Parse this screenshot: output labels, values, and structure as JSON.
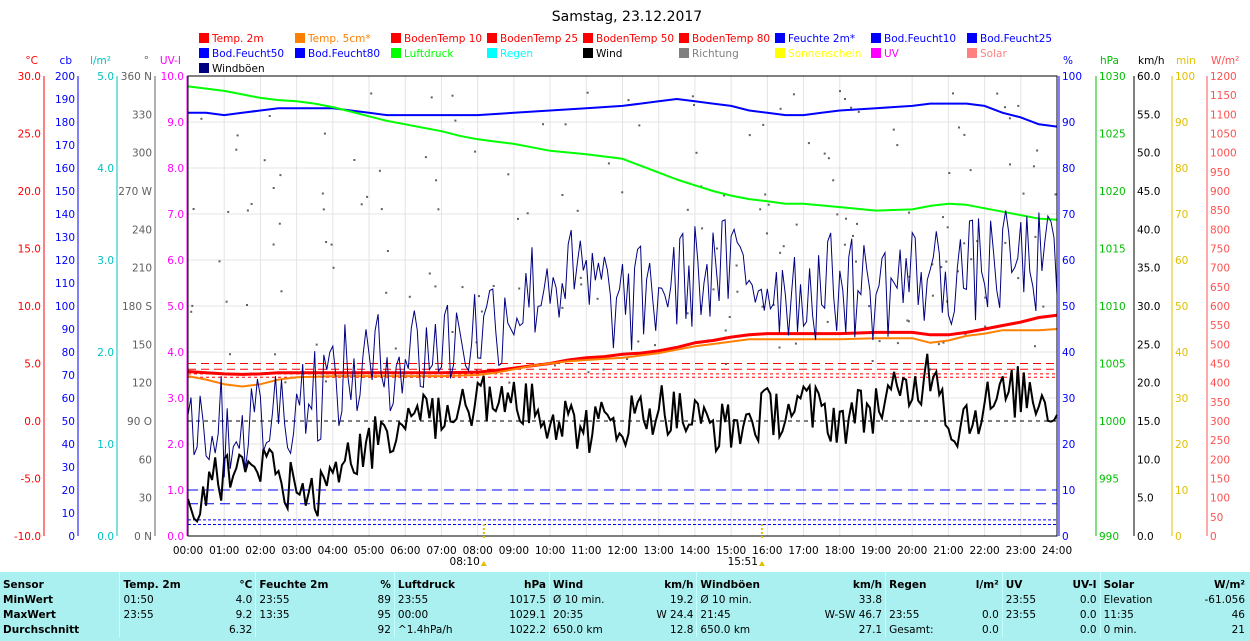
{
  "title": "Samstag, 23.12.2017",
  "legend": [
    {
      "label": "Temp. 2m",
      "color": "#ff0000"
    },
    {
      "label": "Temp. 5cm*",
      "color": "#ff8000"
    },
    {
      "label": "BodenTemp 10",
      "color": "#ff0000"
    },
    {
      "label": "BodenTemp 25",
      "color": "#ff0000"
    },
    {
      "label": "BodenTemp 50",
      "color": "#ff0000"
    },
    {
      "label": "BodenTemp 80",
      "color": "#ff0000"
    },
    {
      "label": "Feuchte 2m*",
      "color": "#0000ff"
    },
    {
      "label": "Bod.Feucht10",
      "color": "#0000ff"
    },
    {
      "label": "Bod.Feucht25",
      "color": "#0000ff"
    },
    {
      "label": "Bod.Feucht50",
      "color": "#0000ff"
    },
    {
      "label": "Bod.Feucht80",
      "color": "#0000ff"
    },
    {
      "label": "Luftdruck",
      "color": "#00ff00"
    },
    {
      "label": "Regen",
      "color": "#00ffff"
    },
    {
      "label": "Wind",
      "color": "#000000"
    },
    {
      "label": "Richtung",
      "color": "#808080"
    },
    {
      "label": "Sonnenschein",
      "color": "#ffff00"
    },
    {
      "label": "UV",
      "color": "#ff00ff"
    },
    {
      "label": "Solar",
      "color": "#ff8080"
    },
    {
      "label": "Windböen",
      "color": "#000080"
    }
  ],
  "chart_data": {
    "type": "line",
    "title": "Samstag, 23.12.2017",
    "x_ticks": [
      "00:00",
      "01:00",
      "02:00",
      "03:00",
      "04:00",
      "05:00",
      "06:00",
      "07:00",
      "08:00",
      "09:00",
      "10:00",
      "11:00",
      "12:00",
      "13:00",
      "14:00",
      "15:00",
      "16:00",
      "17:00",
      "18:00",
      "19:00",
      "20:00",
      "21:00",
      "22:00",
      "23:00",
      "24:00"
    ],
    "markers": [
      {
        "label": "08:10",
        "hour": 8.17
      },
      {
        "label": "15:51",
        "hour": 15.85
      }
    ],
    "axes": [
      {
        "unit": "°C",
        "color": "#ff0000",
        "range": [
          -10,
          30
        ],
        "ticks": [
          "30.0",
          "25.0",
          "20.0",
          "15.0",
          "10.0",
          "5.0",
          "0.0",
          "-5.0",
          "-10.0"
        ]
      },
      {
        "unit": "cb",
        "color": "#0000ff",
        "range": [
          0,
          200
        ],
        "ticks": [
          "200",
          "190",
          "180",
          "170",
          "160",
          "150",
          "140",
          "130",
          "120",
          "110",
          "100",
          "90",
          "80",
          "70",
          "60",
          "50",
          "40",
          "30",
          "20",
          "10",
          "0"
        ]
      },
      {
        "unit": "l/m²",
        "color": "#00c0c0",
        "range": [
          0,
          5
        ],
        "ticks": [
          "5.0",
          "4.0",
          "3.0",
          "2.0",
          "1.0",
          "0.0"
        ]
      },
      {
        "unit": "°",
        "color": "#606060",
        "range": [
          0,
          360
        ],
        "ticks": [
          "360 N",
          "330",
          "300",
          "270 W",
          "240",
          "210",
          "180 S",
          "150",
          "120",
          "90 O",
          "60",
          "30",
          "0 N"
        ]
      },
      {
        "unit": "UV-I",
        "color": "#ff00ff",
        "range": [
          0,
          10
        ],
        "ticks": [
          "10.0",
          "9.0",
          "8.0",
          "7.0",
          "6.0",
          "5.0",
          "4.0",
          "3.0",
          "2.0",
          "1.0",
          "0.0"
        ]
      },
      {
        "unit": "%",
        "color": "#0000ff",
        "range": [
          0,
          100
        ],
        "ticks": [
          "100",
          "90",
          "80",
          "70",
          "60",
          "50",
          "40",
          "30",
          "20",
          "10",
          "0"
        ]
      },
      {
        "unit": "hPa",
        "color": "#00c000",
        "range": [
          990,
          1030
        ],
        "ticks": [
          "1030",
          "1025",
          "1020",
          "1015",
          "1010",
          "1005",
          "1000",
          "995",
          "990"
        ]
      },
      {
        "unit": "km/h",
        "color": "#000000",
        "range": [
          0,
          60
        ],
        "ticks": [
          "60.0",
          "55.0",
          "50.0",
          "45.0",
          "40.0",
          "35.0",
          "30.0",
          "25.0",
          "20.0",
          "15.0",
          "10.0",
          "5.0",
          "0.0"
        ]
      },
      {
        "unit": "min",
        "color": "#e0c000",
        "range": [
          0,
          100
        ],
        "ticks": [
          "100",
          "90",
          "80",
          "70",
          "60",
          "50",
          "40",
          "30",
          "20",
          "10",
          "0"
        ]
      },
      {
        "unit": "W/m²",
        "color": "#ff5050",
        "range": [
          0,
          1200
        ],
        "ticks": [
          "1200",
          "1150",
          "1100",
          "1050",
          "1000",
          "950",
          "900",
          "850",
          "800",
          "750",
          "700",
          "650",
          "600",
          "550",
          "500",
          "450",
          "400",
          "350",
          "300",
          "250",
          "200",
          "150",
          "100",
          "50",
          "0"
        ]
      }
    ],
    "series": [
      {
        "name": "Feuchte 2m*",
        "axis": "%",
        "color": "#0000ff",
        "width": 2,
        "x": [
          0,
          0.5,
          1,
          1.5,
          2,
          2.5,
          3,
          3.5,
          4,
          4.5,
          5,
          5.5,
          6,
          7,
          8,
          9,
          10,
          11,
          12,
          12.5,
          13,
          13.5,
          14,
          14.5,
          15,
          15.5,
          16,
          16.5,
          17,
          17.5,
          18,
          19,
          20,
          20.5,
          21,
          21.5,
          22,
          22.5,
          23,
          23.5,
          24
        ],
        "y": [
          92,
          92,
          91.5,
          92,
          92.5,
          93,
          93,
          93,
          93,
          92.5,
          92,
          91.5,
          91.5,
          91.5,
          91.5,
          92,
          92.5,
          93,
          93.5,
          94,
          94.5,
          95,
          94.5,
          94,
          93.5,
          92.5,
          92,
          91.5,
          91.5,
          92,
          92.5,
          93,
          93.5,
          94,
          94,
          94,
          93.5,
          92,
          91,
          89.5,
          89
        ]
      },
      {
        "name": "Luftdruck",
        "axis": "hPa",
        "color": "#00ff00",
        "width": 2,
        "x": [
          0,
          0.5,
          1,
          1.5,
          2,
          2.5,
          3,
          3.5,
          4,
          4.5,
          5,
          5.5,
          6,
          6.5,
          7,
          7.5,
          8,
          8.5,
          9,
          9.5,
          10,
          11,
          12,
          12.5,
          13,
          13.5,
          14,
          14.5,
          15,
          15.5,
          16,
          16.5,
          17,
          18,
          19,
          20,
          20.5,
          21,
          21.5,
          22,
          22.5,
          23,
          23.5,
          24
        ],
        "y": [
          1029.1,
          1028.9,
          1028.7,
          1028.4,
          1028.1,
          1027.9,
          1027.8,
          1027.6,
          1027.3,
          1026.9,
          1026.5,
          1026.1,
          1025.8,
          1025.5,
          1025.2,
          1024.8,
          1024.5,
          1024.3,
          1024.1,
          1023.8,
          1023.5,
          1023.2,
          1022.8,
          1022.2,
          1021.6,
          1021,
          1020.5,
          1020,
          1019.6,
          1019.3,
          1019.1,
          1018.9,
          1018.9,
          1018.6,
          1018.3,
          1018.4,
          1018.7,
          1018.9,
          1018.8,
          1018.5,
          1018.2,
          1017.9,
          1017.6,
          1017.5
        ]
      },
      {
        "name": "Temp. 2m",
        "axis": "°C",
        "color": "#ff0000",
        "width": 3,
        "x": [
          0,
          0.5,
          1,
          1.5,
          2,
          2.5,
          3,
          4,
          5,
          6,
          7,
          8,
          8.5,
          9,
          9.5,
          10,
          10.5,
          11,
          11.5,
          12,
          12.5,
          13,
          13.5,
          14,
          14.5,
          15,
          15.5,
          16,
          17,
          18,
          19,
          20,
          20.5,
          21,
          21.5,
          22,
          22.5,
          23,
          23.5,
          24
        ],
        "y": [
          4.3,
          4.2,
          4.1,
          4.05,
          4.1,
          4.2,
          4.2,
          4.2,
          4.2,
          4.2,
          4.2,
          4.25,
          4.4,
          4.6,
          4.8,
          5.0,
          5.3,
          5.5,
          5.6,
          5.8,
          5.9,
          6.1,
          6.4,
          6.8,
          7.0,
          7.3,
          7.5,
          7.6,
          7.6,
          7.6,
          7.7,
          7.7,
          7.5,
          7.5,
          7.7,
          8.0,
          8.3,
          8.6,
          9.0,
          9.2
        ]
      },
      {
        "name": "Temp. 5cm*",
        "axis": "°C",
        "color": "#ff8000",
        "width": 2,
        "x": [
          0,
          0.5,
          1,
          1.5,
          2,
          2.5,
          3,
          4,
          5,
          6,
          7,
          8,
          8.5,
          9,
          9.5,
          10,
          10.5,
          11,
          11.5,
          12,
          12.5,
          13,
          13.5,
          14,
          14.5,
          15,
          15.5,
          16,
          17,
          18,
          19,
          20,
          20.5,
          21,
          21.5,
          22,
          22.5,
          23,
          23.5,
          24
        ],
        "y": [
          3.9,
          3.6,
          3.2,
          3.0,
          3.2,
          3.6,
          3.8,
          3.9,
          3.9,
          3.9,
          3.9,
          4.0,
          4.2,
          4.5,
          4.8,
          5.0,
          5.2,
          5.3,
          5.4,
          5.5,
          5.7,
          5.9,
          6.2,
          6.5,
          6.7,
          6.9,
          7.1,
          7.1,
          7.1,
          7.1,
          7.2,
          7.2,
          6.8,
          7.0,
          7.4,
          7.6,
          7.9,
          7.9,
          7.9,
          8.0
        ]
      }
    ],
    "noisy_series": [
      {
        "name": "Wind",
        "axis": "km/h",
        "color": "#000000",
        "width": 2,
        "control_x": [
          0,
          1,
          2,
          3,
          3.5,
          4,
          5,
          6,
          7,
          8,
          9,
          10,
          11,
          12,
          13,
          14,
          15,
          16,
          17,
          18,
          19,
          20,
          20.7,
          21,
          22,
          23,
          24
        ],
        "control_y": [
          4,
          8,
          10,
          6,
          4,
          9,
          12,
          14,
          16,
          18,
          18,
          16,
          14,
          15,
          17,
          15,
          14,
          16,
          17,
          15,
          17,
          19,
          23,
          14,
          17,
          19,
          17
        ],
        "noise": 3.5
      },
      {
        "name": "Windböen",
        "axis": "km/h",
        "color": "#000080",
        "width": 1,
        "control_x": [
          0,
          1,
          2,
          3,
          4,
          5,
          6,
          7,
          8,
          9,
          10,
          11,
          12,
          13,
          14,
          15,
          16,
          17,
          18,
          19,
          20,
          21,
          22,
          23,
          24
        ],
        "control_y": [
          16,
          14,
          15,
          18,
          20,
          22,
          24,
          25,
          27,
          30,
          34,
          33,
          30,
          32,
          34,
          35,
          33,
          32,
          33,
          32,
          34,
          34,
          35,
          36,
          35
        ],
        "noise": 7
      }
    ],
    "reference_lines": [
      {
        "axis": "°C",
        "value": 5.0,
        "color": "#ff0000",
        "dash": "8,5"
      },
      {
        "axis": "°C",
        "value": 4.5,
        "color": "#ff0000",
        "dash": "8,5"
      },
      {
        "axis": "°C",
        "value": 4.1,
        "color": "#ff0000",
        "dash": "3,3"
      },
      {
        "axis": "°C",
        "value": 3.8,
        "color": "#ff0000",
        "dash": "3,3"
      },
      {
        "axis": "°C",
        "value": 0.0,
        "color": "#000000",
        "dash": "4,4"
      },
      {
        "axis": "%",
        "value": 10,
        "color": "#0000ff",
        "dash": "10,6"
      },
      {
        "axis": "%",
        "value": 7,
        "color": "#0000ff",
        "dash": "10,6"
      },
      {
        "axis": "%",
        "value": 3.5,
        "color": "#0000ff",
        "dash": "3,2"
      },
      {
        "axis": "%",
        "value": 2.5,
        "color": "#0000ff",
        "dash": "3,2"
      }
    ]
  },
  "summary": {
    "headers": [
      "Sensor",
      "Temp. 2m",
      "°C",
      "Feuchte 2m",
      "%",
      "Luftdruck",
      "hPa",
      "Wind",
      "km/h",
      "Windböen",
      "km/h",
      "Regen",
      "l/m²",
      "UV",
      "UV-I",
      "Solar",
      "W/m²"
    ],
    "rows": [
      [
        "MinWert",
        "01:50",
        "4.0",
        "23:55",
        "89",
        "23:55",
        "1017.5",
        "Ø 10 min.",
        "19.2",
        "Ø 10 min.",
        "33.8",
        "",
        "",
        "23:55",
        "0.0",
        "Elevation",
        "-61.056"
      ],
      [
        "MaxWert",
        "23:55",
        "9.2",
        "13:35",
        "95",
        "00:00",
        "1029.1",
        "20:35",
        "W 24.4",
        "21:45",
        "W-SW 46.7",
        "23:55",
        "0.0",
        "23:55",
        "0.0",
        "11:35",
        "46"
      ],
      [
        "Durchschnitt",
        "",
        "6.32",
        "",
        "92",
        "^1.4hPa/h",
        "1022.2",
        "650.0 km",
        "12.8",
        "650.0 km",
        "27.1",
        "Gesamt:",
        "0.0",
        "",
        "0.0",
        "0 min.",
        "21"
      ]
    ]
  }
}
